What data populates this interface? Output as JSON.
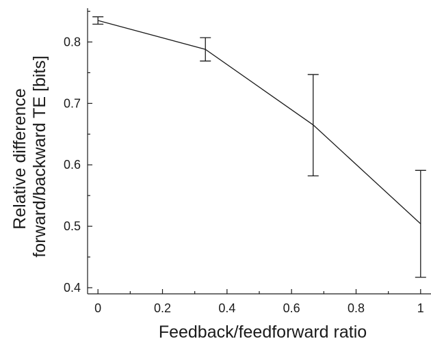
{
  "chart_data": {
    "type": "line",
    "title": "",
    "xlabel": "Feedback/feedforward ratio",
    "ylabel_lines": [
      "Relative difference",
      "forward/backward TE [bits]"
    ],
    "xlim": [
      -0.0322,
      1.0322
    ],
    "ylim": [
      0.39,
      0.855
    ],
    "x_ticks": [
      0,
      0.2,
      0.4,
      0.6,
      0.8,
      1
    ],
    "x_tick_labels": [
      "0",
      "0.2",
      "0.4",
      "0.6",
      "0.8",
      "1"
    ],
    "y_ticks": [
      0.4,
      0.5,
      0.6,
      0.7,
      0.8
    ],
    "y_tick_labels": [
      "0.4",
      "0.5",
      "0.6",
      "0.7",
      "0.8"
    ],
    "grid": false,
    "series": [
      {
        "x": [
          0,
          0.333,
          0.667,
          1
        ],
        "y": [
          0.835,
          0.788,
          0.665,
          0.504
        ],
        "err_low": [
          0.829,
          0.769,
          0.582,
          0.417
        ],
        "err_high": [
          0.841,
          0.807,
          0.747,
          0.591
        ]
      }
    ]
  }
}
